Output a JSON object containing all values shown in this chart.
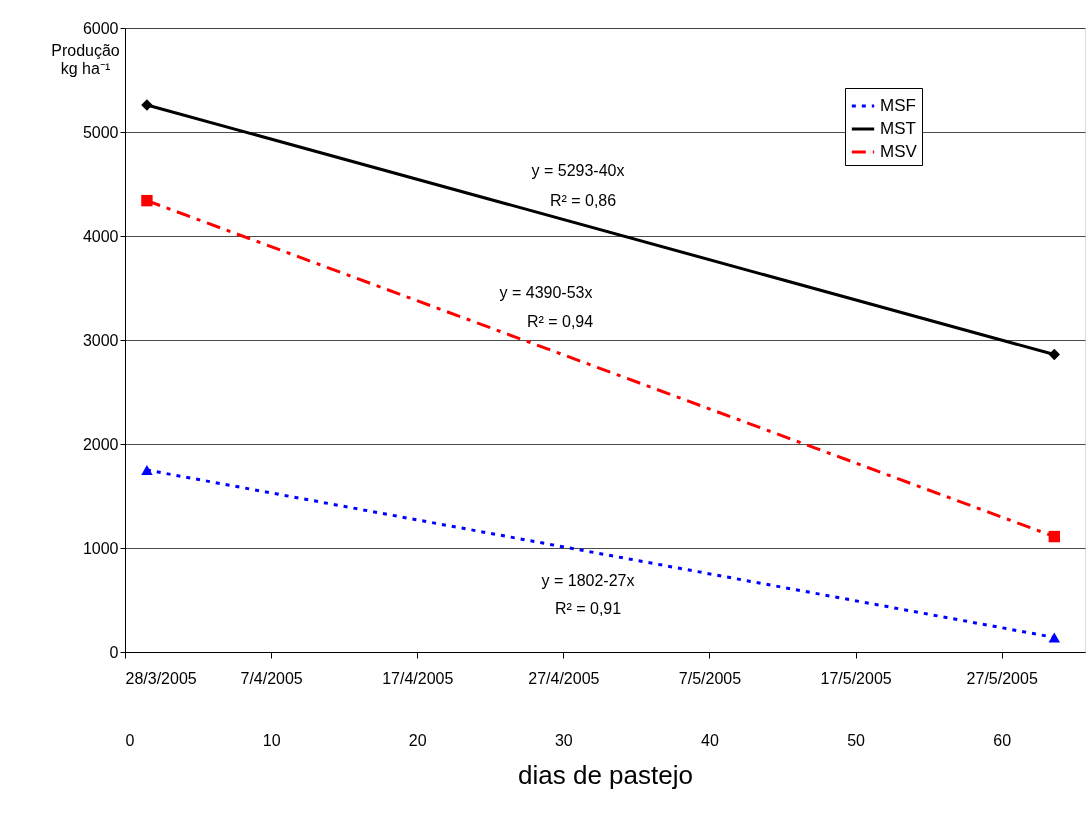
{
  "chart_data": {
    "type": "line",
    "xlabel": "dias de pastejo",
    "ylabel": "Produção kg ha⁻¹",
    "xlim": [
      0,
      65.7
    ],
    "xticks": [
      0,
      10,
      20,
      30,
      40,
      50,
      60
    ],
    "x2lim": [
      "2005-03-28",
      "2005-06-01T16:48"
    ],
    "x2ticks": [
      {
        "value": "2005-03-28",
        "label": "28/3/2005"
      },
      {
        "value": "2005-04-07",
        "label": "7/4/2005"
      },
      {
        "value": "2005-04-17",
        "label": "17/4/2005"
      },
      {
        "value": "2005-04-27",
        "label": "27/4/2005"
      },
      {
        "value": "2005-05-07",
        "label": "7/5/2005"
      },
      {
        "value": "2005-05-17",
        "label": "17/5/2005"
      },
      {
        "value": "2005-05-27",
        "label": "27/5/2005"
      }
    ],
    "ylim": [
      0,
      6000
    ],
    "yticks": [
      0,
      1000,
      2000,
      3000,
      4000,
      5000,
      6000
    ],
    "grid": "y",
    "legend": "top right",
    "x": [
      1.5,
      63.6
    ],
    "series": [
      {
        "name": "MSF",
        "color": "#0000ff",
        "line_style": "dotted",
        "marker": "triangle",
        "values": [
          1750,
          140
        ]
      },
      {
        "name": "MST",
        "color": "#000000",
        "line_style": "solid",
        "marker": "diamond",
        "values": [
          5260,
          2860
        ]
      },
      {
        "name": "MSV",
        "color": "#ff0000",
        "line_style": "dashed",
        "marker": "square",
        "values": [
          4340,
          1110
        ]
      }
    ],
    "annotations": [
      "y = 5293-40x",
      "R² = 0,86",
      "y = 4390-53x",
      "R² = 0,94",
      "y = 1802-27x",
      "R² = 0,91"
    ]
  }
}
